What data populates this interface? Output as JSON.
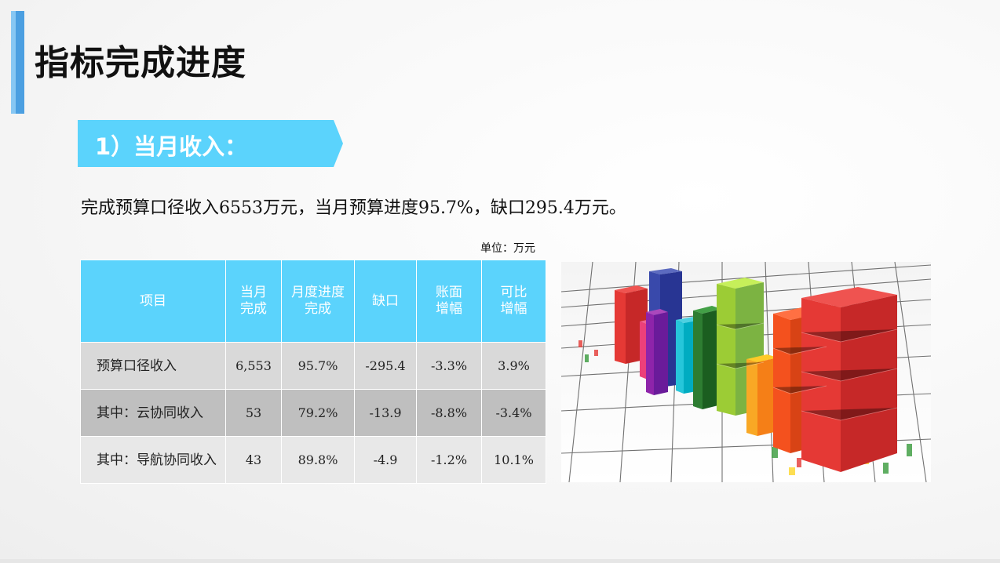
{
  "page": {
    "title": "指标完成进度"
  },
  "section": {
    "label": "1）当月收入："
  },
  "summary": {
    "t1": "完成预算口径收入",
    "n1": "6553",
    "t2": "万元，当月预算进度",
    "n2": "95.7%",
    "t3": "，缺口",
    "n3": "295.4",
    "t4": "万元。"
  },
  "unit_label": "单位：万元",
  "table": {
    "headers": {
      "item": "项目",
      "month_done": [
        "当月",
        "完成"
      ],
      "progress": [
        "月度进度",
        "完成"
      ],
      "gap": "缺口",
      "book_growth": [
        "账面",
        "增幅"
      ],
      "comparable_growth": [
        "可比",
        "增幅"
      ]
    },
    "rows": [
      {
        "name": "预算口径收入",
        "month_done": "6,553",
        "progress": "95.7%",
        "gap": "-295.4",
        "book_growth": "-3.3%",
        "comparable_growth": "3.9%"
      },
      {
        "name": "其中：云协同收入",
        "month_done": "53",
        "progress": "79.2%",
        "gap": "-13.9",
        "book_growth": "-8.8%",
        "comparable_growth": "-3.4%"
      },
      {
        "name": "其中：导航协同收入",
        "month_done": "43",
        "progress": "89.8%",
        "gap": "-4.9",
        "book_growth": "-1.2%",
        "comparable_growth": "10.1%"
      }
    ]
  },
  "colors": {
    "accent": "#4b9fe1",
    "banner": "#5bd3fc",
    "header_bg": "#5bd3fc"
  },
  "chart_image": {
    "icon": "3d-bar-chart-illustration"
  }
}
